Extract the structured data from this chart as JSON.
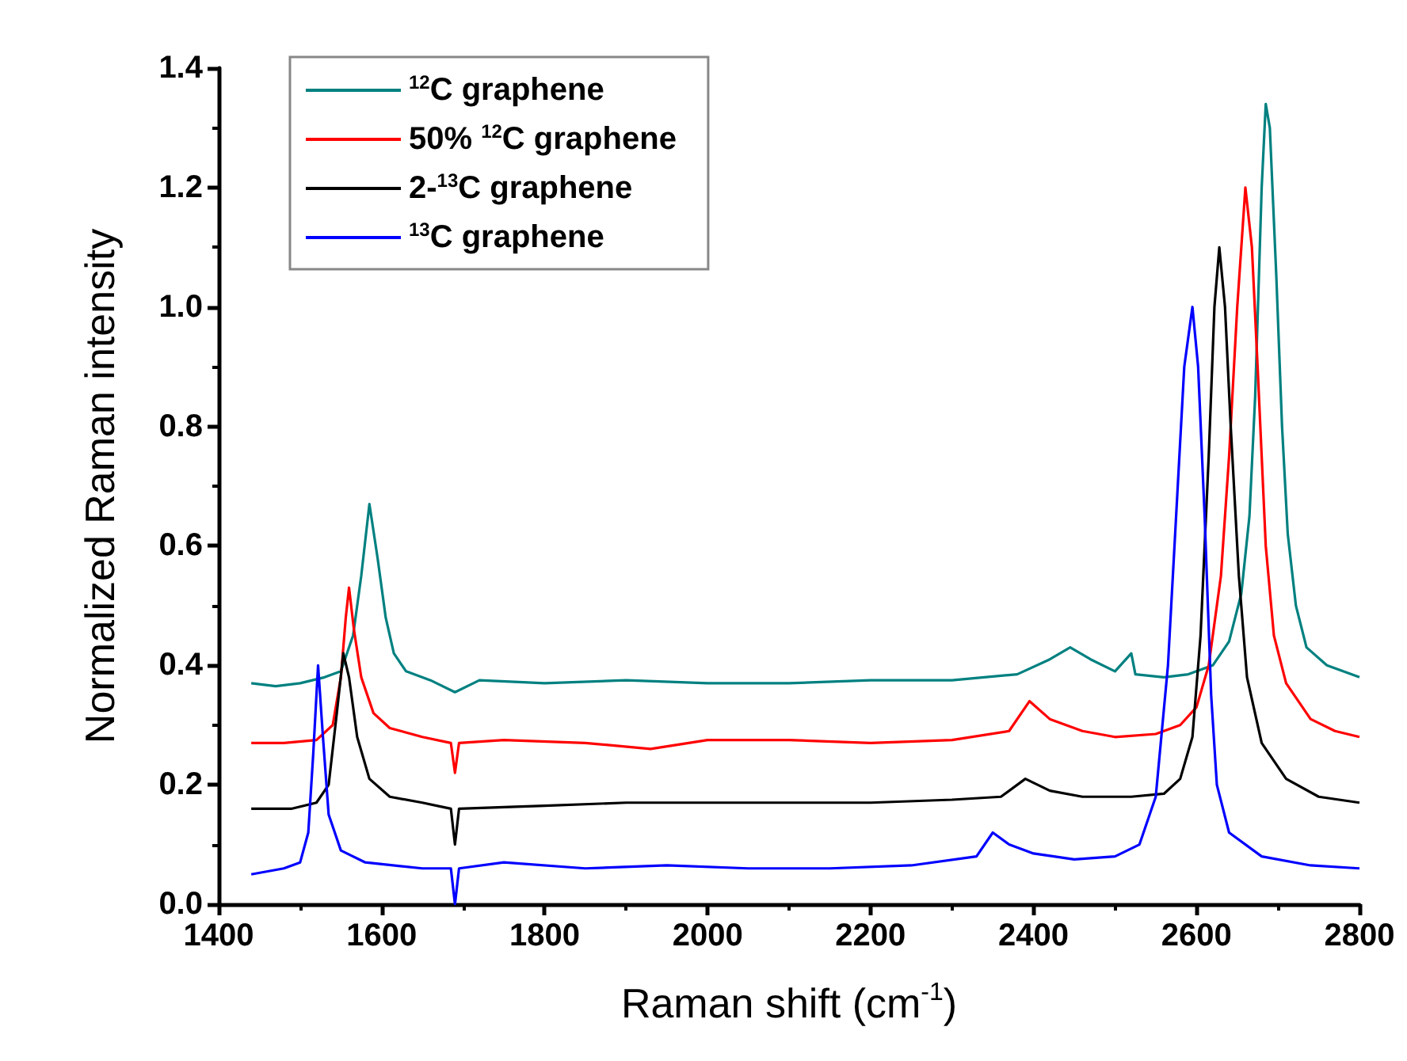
{
  "chart_data": {
    "type": "line",
    "xlabel": "Raman shift (cm$^{-1}$)",
    "ylabel": "Normalized Raman intensity",
    "xlim": [
      1400,
      2800
    ],
    "xticks": [
      1400,
      1600,
      1800,
      2000,
      2200,
      2400,
      2600,
      2800
    ],
    "ylim": [
      0,
      1.4
    ],
    "yticks": [
      {
        "value": 0,
        "label": "0.0"
      },
      0.2,
      0.4,
      0.6,
      0.8,
      {
        "value": 1,
        "label": "1.0"
      },
      1.2,
      1.4
    ],
    "grid": false,
    "legend": "top left",
    "series": [
      {
        "name": "$^{12}$C graphene",
        "color": "#008080",
        "x": [
          1440,
          1470,
          1500,
          1530,
          1550,
          1565,
          1575,
          1585,
          1595,
          1605,
          1615,
          1630,
          1660,
          1690,
          1720,
          1800,
          1900,
          2000,
          2100,
          2200,
          2300,
          2380,
          2420,
          2445,
          2470,
          2500,
          2520,
          2525,
          2560,
          2590,
          2620,
          2640,
          2655,
          2665,
          2672,
          2680,
          2685,
          2690,
          2698,
          2705,
          2712,
          2722,
          2735,
          2760,
          2800
        ],
        "values": [
          0.37,
          0.365,
          0.37,
          0.38,
          0.39,
          0.45,
          0.55,
          0.67,
          0.58,
          0.48,
          0.42,
          0.39,
          0.375,
          0.355,
          0.375,
          0.37,
          0.375,
          0.37,
          0.37,
          0.375,
          0.375,
          0.385,
          0.41,
          0.43,
          0.41,
          0.39,
          0.42,
          0.385,
          0.38,
          0.385,
          0.4,
          0.44,
          0.52,
          0.65,
          0.85,
          1.2,
          1.34,
          1.3,
          1.05,
          0.8,
          0.62,
          0.5,
          0.43,
          0.4,
          0.38
        ]
      },
      {
        "name": "50% $^{12}$C graphene",
        "color": "#ff0000",
        "x": [
          1440,
          1480,
          1520,
          1540,
          1550,
          1556,
          1560,
          1566,
          1575,
          1590,
          1610,
          1650,
          1685,
          1690,
          1695,
          1750,
          1850,
          1930,
          2000,
          2100,
          2200,
          2300,
          2370,
          2395,
          2420,
          2460,
          2500,
          2550,
          2580,
          2600,
          2615,
          2630,
          2640,
          2650,
          2660,
          2668,
          2675,
          2685,
          2695,
          2710,
          2740,
          2770,
          2800
        ],
        "values": [
          0.27,
          0.27,
          0.275,
          0.3,
          0.38,
          0.48,
          0.53,
          0.46,
          0.38,
          0.32,
          0.295,
          0.28,
          0.27,
          0.22,
          0.27,
          0.275,
          0.27,
          0.26,
          0.275,
          0.275,
          0.27,
          0.275,
          0.29,
          0.34,
          0.31,
          0.29,
          0.28,
          0.285,
          0.3,
          0.33,
          0.4,
          0.55,
          0.75,
          1.0,
          1.2,
          1.1,
          0.9,
          0.6,
          0.45,
          0.37,
          0.31,
          0.29,
          0.28
        ]
      },
      {
        "name": "2-$^{13}$C graphene",
        "color": "#000000",
        "x": [
          1440,
          1490,
          1520,
          1535,
          1545,
          1553,
          1560,
          1570,
          1585,
          1610,
          1650,
          1685,
          1690,
          1695,
          1800,
          1900,
          2000,
          2100,
          2200,
          2300,
          2360,
          2390,
          2420,
          2460,
          2520,
          2560,
          2580,
          2595,
          2605,
          2615,
          2622,
          2628,
          2635,
          2642,
          2652,
          2662,
          2680,
          2710,
          2750,
          2800
        ],
        "values": [
          0.16,
          0.16,
          0.17,
          0.2,
          0.32,
          0.42,
          0.38,
          0.28,
          0.21,
          0.18,
          0.17,
          0.16,
          0.1,
          0.16,
          0.165,
          0.17,
          0.17,
          0.17,
          0.17,
          0.175,
          0.18,
          0.21,
          0.19,
          0.18,
          0.18,
          0.185,
          0.21,
          0.28,
          0.45,
          0.75,
          1.0,
          1.1,
          1.0,
          0.8,
          0.55,
          0.38,
          0.27,
          0.21,
          0.18,
          0.17
        ]
      },
      {
        "name": "$^{13}$C graphene",
        "color": "#0000ff",
        "x": [
          1440,
          1480,
          1500,
          1510,
          1516,
          1522,
          1528,
          1535,
          1550,
          1580,
          1650,
          1685,
          1690,
          1695,
          1750,
          1850,
          1950,
          2050,
          2150,
          2250,
          2330,
          2350,
          2370,
          2400,
          2450,
          2500,
          2530,
          2550,
          2565,
          2575,
          2585,
          2595,
          2602,
          2610,
          2618,
          2625,
          2640,
          2680,
          2740,
          2800
        ],
        "values": [
          0.05,
          0.06,
          0.07,
          0.12,
          0.25,
          0.4,
          0.28,
          0.15,
          0.09,
          0.07,
          0.06,
          0.06,
          0,
          0.06,
          0.07,
          0.06,
          0.065,
          0.06,
          0.06,
          0.065,
          0.08,
          0.12,
          0.1,
          0.085,
          0.075,
          0.08,
          0.1,
          0.18,
          0.4,
          0.65,
          0.9,
          1.0,
          0.9,
          0.65,
          0.35,
          0.2,
          0.12,
          0.08,
          0.065,
          0.06
        ]
      }
    ]
  }
}
